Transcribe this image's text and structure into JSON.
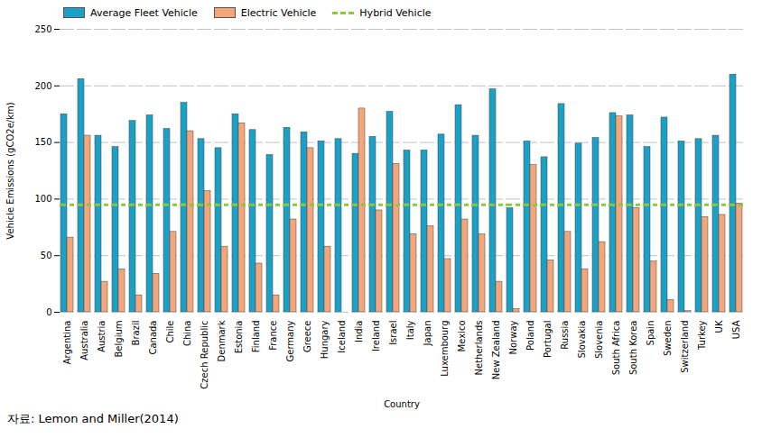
{
  "chart_data": {
    "type": "bar",
    "xlabel": "Country",
    "ylabel": "Vehicle Emissions (gCO2e/km)",
    "caption": "자료: Lemon and Miller(2014)",
    "categories": [
      "Argentina",
      "Australia",
      "Austria",
      "Belgium",
      "Brazil",
      "Canada",
      "Chile",
      "China",
      "Czech Republic",
      "Denmark",
      "Estonia",
      "Finland",
      "France",
      "Germany",
      "Greece",
      "Hungary",
      "Iceland",
      "India",
      "Ireland",
      "Israel",
      "Italy",
      "Japan",
      "Luxembourg",
      "Mexico",
      "Netherlands",
      "New Zealand",
      "Norway",
      "Poland",
      "Portugal",
      "Russia",
      "Slovakia",
      "Slovenia",
      "South Africa",
      "South Korea",
      "Spain",
      "Sweden",
      "Switzerland",
      "Turkey",
      "UK",
      "USA"
    ],
    "series": [
      {
        "name": "Average Fleet Vehicle",
        "color": "#1ba1c6",
        "values": [
          175,
          206,
          156,
          146,
          169,
          174,
          162,
          185,
          153,
          145,
          175,
          161,
          139,
          163,
          159,
          151,
          153,
          140,
          155,
          177,
          143,
          143,
          157,
          183,
          156,
          197,
          92,
          151,
          137,
          184,
          149,
          154,
          176,
          174,
          146,
          172,
          151,
          153,
          156,
          210
        ]
      },
      {
        "name": "Electric Vehicle",
        "color": "#f5a57a",
        "values": [
          66,
          156,
          27,
          38,
          15,
          34,
          71,
          160,
          107,
          58,
          167,
          43,
          15,
          82,
          145,
          58,
          0,
          180,
          90,
          131,
          69,
          76,
          47,
          82,
          69,
          27,
          3,
          130,
          46,
          71,
          38,
          62,
          173,
          92,
          45,
          11,
          1,
          84,
          86,
          96
        ]
      },
      {
        "name": "Hybrid Vehicle",
        "type": "line",
        "line_style": "dashed",
        "color": "#8dc63f",
        "values": [
          95,
          95,
          95,
          95,
          95,
          95,
          95,
          95,
          95,
          95,
          95,
          95,
          95,
          95,
          95,
          95,
          95,
          95,
          95,
          95,
          95,
          95,
          95,
          95,
          95,
          95,
          95,
          95,
          95,
          95,
          95,
          95,
          95,
          95,
          95,
          95,
          95,
          95,
          95,
          95
        ]
      }
    ],
    "ylim": [
      0,
      250
    ],
    "yticks": [
      0,
      50,
      100,
      150,
      200,
      250
    ],
    "grid": true,
    "legend": "upper left"
  }
}
